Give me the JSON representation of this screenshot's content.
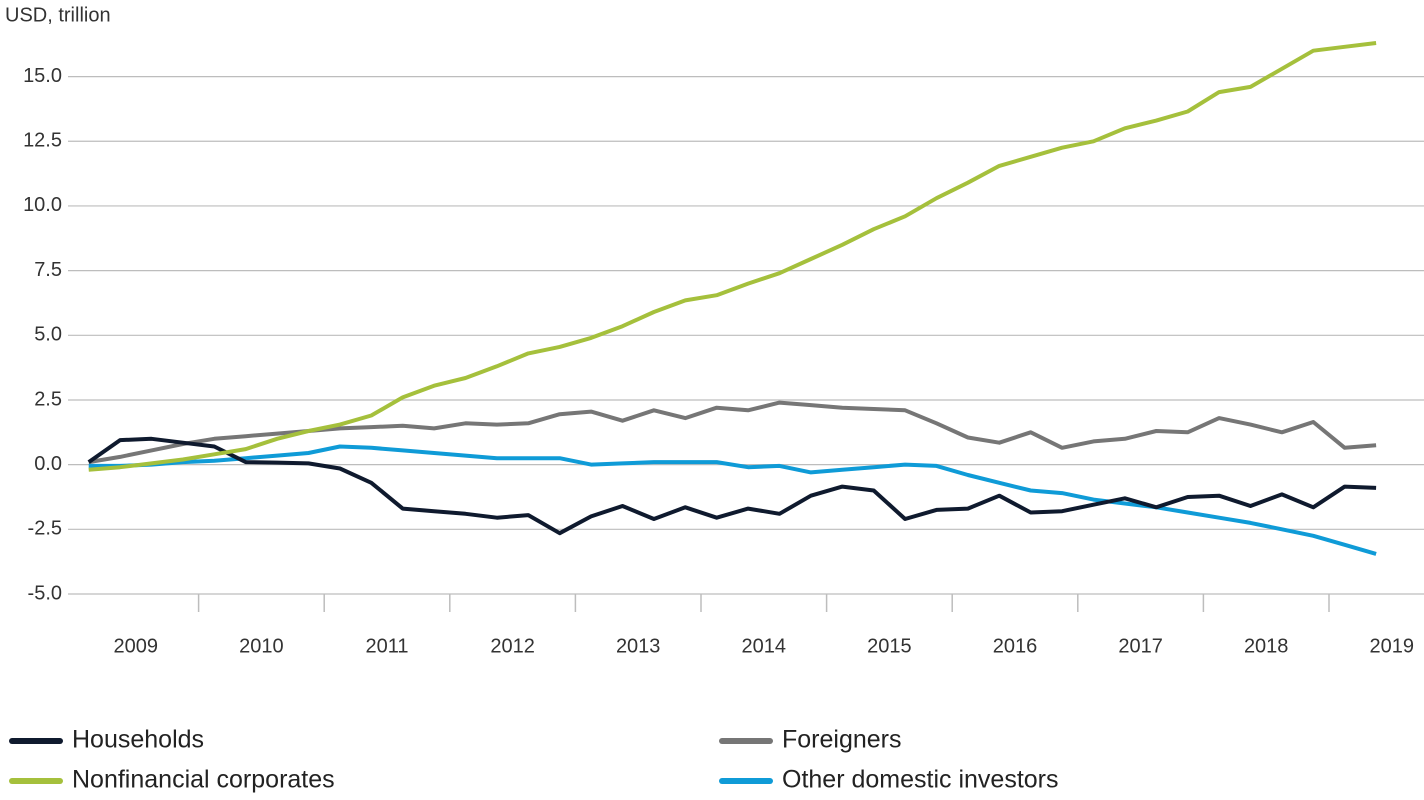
{
  "chart_data": {
    "type": "line",
    "y_label": "USD, trillion",
    "categories": [
      "2009",
      null,
      null,
      null,
      "2010",
      null,
      null,
      null,
      "2011",
      null,
      null,
      null,
      "2012",
      null,
      null,
      null,
      "2013",
      null,
      null,
      null,
      "2014",
      null,
      null,
      null,
      "2015",
      null,
      null,
      null,
      "2016",
      null,
      null,
      null,
      "2017",
      null,
      null,
      null,
      "2018",
      null,
      null,
      null,
      "2019",
      null
    ],
    "series": [
      {
        "name": "Households",
        "color": "#0f1a2e",
        "values": [
          0.1,
          0.95,
          1.0,
          0.85,
          0.7,
          0.1,
          0.08,
          0.05,
          -0.15,
          -0.7,
          -1.7,
          -1.8,
          -1.9,
          -2.05,
          -1.95,
          -2.65,
          -2.0,
          -1.6,
          -2.1,
          -1.65,
          -2.05,
          -1.7,
          -1.9,
          -1.2,
          -0.85,
          -1.0,
          -2.1,
          -1.75,
          -1.7,
          -1.2,
          -1.85,
          -1.8,
          -1.55,
          -1.3,
          -1.65,
          -1.25,
          -1.2,
          -1.6,
          -1.15,
          -1.65,
          -0.85,
          -0.9
        ]
      },
      {
        "name": "Nonfinancial corporates",
        "color": "#a5c03c",
        "values": [
          -0.2,
          -0.1,
          0.05,
          0.2,
          0.4,
          0.6,
          1.0,
          1.3,
          1.55,
          1.9,
          2.6,
          3.05,
          3.35,
          3.8,
          4.3,
          4.55,
          4.9,
          5.35,
          5.9,
          6.35,
          6.55,
          7.0,
          7.4,
          7.95,
          8.5,
          9.1,
          9.6,
          10.3,
          10.9,
          11.55,
          11.9,
          12.25,
          12.5,
          13.0,
          13.3,
          13.65,
          14.4,
          14.6,
          15.3,
          16.0,
          16.15,
          16.3
        ]
      },
      {
        "name": "Foreigners",
        "color": "#767676",
        "values": [
          0.1,
          0.3,
          0.55,
          0.8,
          1.0,
          1.1,
          1.2,
          1.3,
          1.4,
          1.45,
          1.5,
          1.4,
          1.6,
          1.55,
          1.6,
          1.95,
          2.05,
          1.7,
          2.1,
          1.8,
          2.2,
          2.1,
          2.4,
          2.3,
          2.2,
          2.15,
          2.1,
          1.6,
          1.05,
          0.85,
          1.25,
          0.65,
          0.9,
          1.0,
          1.3,
          1.25,
          1.8,
          1.55,
          1.25,
          1.65,
          0.65,
          0.75
        ]
      },
      {
        "name": "Other domestic investors",
        "color": "#0f9bd7",
        "values": [
          -0.05,
          -0.05,
          0.0,
          0.1,
          0.15,
          0.25,
          0.35,
          0.45,
          0.7,
          0.65,
          0.55,
          0.45,
          0.35,
          0.25,
          0.25,
          0.25,
          0.0,
          0.05,
          0.1,
          0.1,
          0.1,
          -0.1,
          -0.05,
          -0.3,
          -0.2,
          -0.1,
          0.0,
          -0.05,
          -0.4,
          -0.7,
          -1.0,
          -1.1,
          -1.35,
          -1.5,
          -1.65,
          -1.85,
          -2.05,
          -2.25,
          -2.5,
          -2.75,
          -3.1,
          -3.45
        ]
      }
    ],
    "ylim": [
      -5,
      17
    ],
    "yticks": [
      {
        "value": -5,
        "label": "-5.0"
      },
      {
        "value": -2.5,
        "label": "-2.5"
      },
      {
        "value": 0,
        "label": "0.0"
      },
      {
        "value": 2.5,
        "label": "2.5"
      },
      {
        "value": 5,
        "label": "5.0"
      },
      {
        "value": 7.5,
        "label": "7.5"
      },
      {
        "value": 10,
        "label": "10.0"
      },
      {
        "value": 12.5,
        "label": "12.5"
      },
      {
        "value": 15,
        "label": "15.0"
      }
    ],
    "grid": true
  }
}
